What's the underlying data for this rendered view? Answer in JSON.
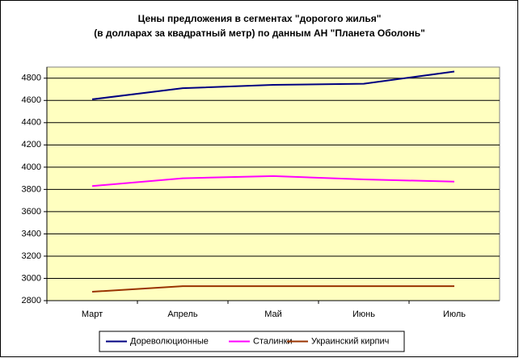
{
  "chart_data": {
    "type": "line",
    "title": [
      "Цены предложения в сегментах \"дорогого жилья\"",
      "(в долларах за квадратный метр)  по данным АН \"Планета Оболонь\""
    ],
    "categories": [
      "Март",
      "Апрель",
      "Май",
      "Июнь",
      "Июль"
    ],
    "series": [
      {
        "name": "Дореволюционные",
        "color": "#000080",
        "values": [
          4610,
          4710,
          4740,
          4750,
          4860
        ]
      },
      {
        "name": "Сталинки",
        "color": "#ff00ff",
        "values": [
          3830,
          3900,
          3920,
          3890,
          3870
        ]
      },
      {
        "name": "Украинский кирпич",
        "color": "#993300",
        "values": [
          2880,
          2930,
          2930,
          2930,
          2930
        ]
      }
    ],
    "ylim": [
      2800,
      4900
    ],
    "yticks": [
      2800,
      3000,
      3200,
      3400,
      3600,
      3800,
      4000,
      4200,
      4400,
      4600,
      4800
    ],
    "grid": true,
    "legend": "bottom",
    "plot_background": "#ffffc0"
  }
}
